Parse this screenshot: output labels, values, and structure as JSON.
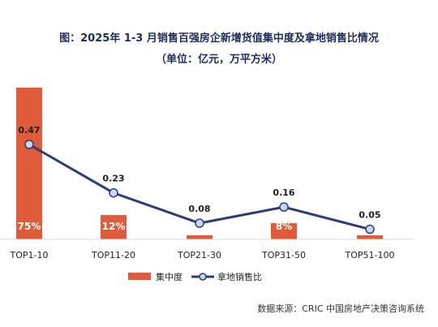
{
  "chart_data": {
    "type": "bar",
    "title": "图：2025年 1-3 月销售百强房企新增货值集中度及拿地销售比情况",
    "subtitle": "（单位：亿元，万平方米）",
    "categories": [
      "TOP1-10",
      "TOP11-20",
      "TOP21-30",
      "TOP31-50",
      "TOP51-100"
    ],
    "series": [
      {
        "name": "集中度",
        "type": "bar",
        "values": [
          75,
          12,
          2,
          8,
          2
        ],
        "value_labels": [
          "75%",
          "12%",
          "",
          "8%",
          ""
        ],
        "color": "#e05b3a"
      },
      {
        "name": "拿地销售比",
        "type": "line",
        "values": [
          0.47,
          0.23,
          0.08,
          0.16,
          0.05
        ],
        "value_labels": [
          "0.47",
          "0.23",
          "0.08",
          "0.16",
          "0.05"
        ],
        "color": "#2e3b75",
        "marker_fill": "#c9d7ec"
      }
    ],
    "bar_ylim": [
      0,
      80
    ],
    "line_ylim": [
      0,
      0.8
    ],
    "grid": false,
    "legend_position": "bottom"
  },
  "source_text": "数据来源：CRIC 中国房地产决策咨询系统"
}
